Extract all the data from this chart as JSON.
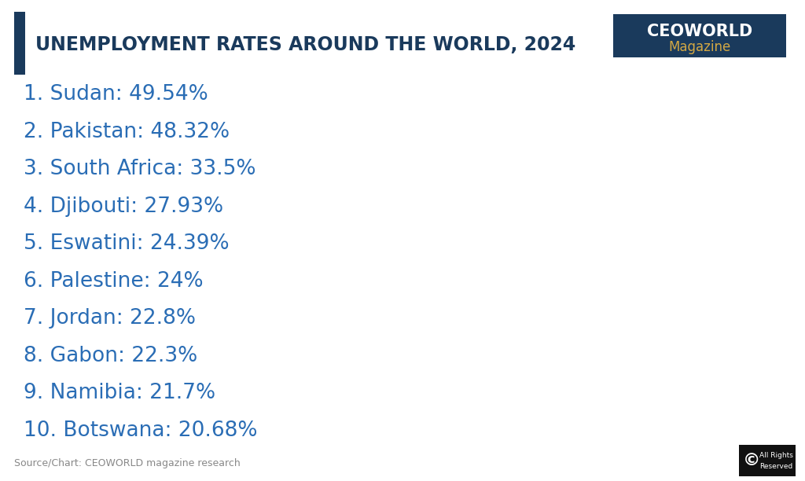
{
  "title": "UNEMPLOYMENT RATES AROUND THE WORLD, 2024",
  "title_color": "#1a3a5c",
  "title_fontsize": 17,
  "bg_color": "#ffffff",
  "items": [
    {
      "rank": 1,
      "country": "Sudan",
      "value": "49.54%"
    },
    {
      "rank": 2,
      "country": "Pakistan",
      "value": "48.32%"
    },
    {
      "rank": 3,
      "country": "South Africa",
      "value": "33.5%"
    },
    {
      "rank": 4,
      "country": "Djibouti",
      "value": "27.93%"
    },
    {
      "rank": 5,
      "country": "Eswatini",
      "value": "24.39%"
    },
    {
      "rank": 6,
      "country": "Palestine",
      "value": "24%"
    },
    {
      "rank": 7,
      "country": "Jordan",
      "value": "22.8%"
    },
    {
      "rank": 8,
      "country": "Gabon",
      "value": "22.3%"
    },
    {
      "rank": 9,
      "country": "Namibia",
      "value": "21.7%"
    },
    {
      "rank": 10,
      "country": "Botswana",
      "value": "20.68%"
    }
  ],
  "item_color": "#2a6db5",
  "item_fontsize": 19,
  "left_bar_color": "#1a3a5c",
  "logo_bg_color": "#1a3a5c",
  "logo_text_main_color": "#ffffff",
  "logo_text_sub_color": "#d4a843",
  "source_text": "Source/Chart: CEOWORLD magazine research",
  "source_color": "#888888",
  "source_fontsize": 9,
  "copyright_bg": "#111111",
  "copyright_text_color": "#ffffff"
}
